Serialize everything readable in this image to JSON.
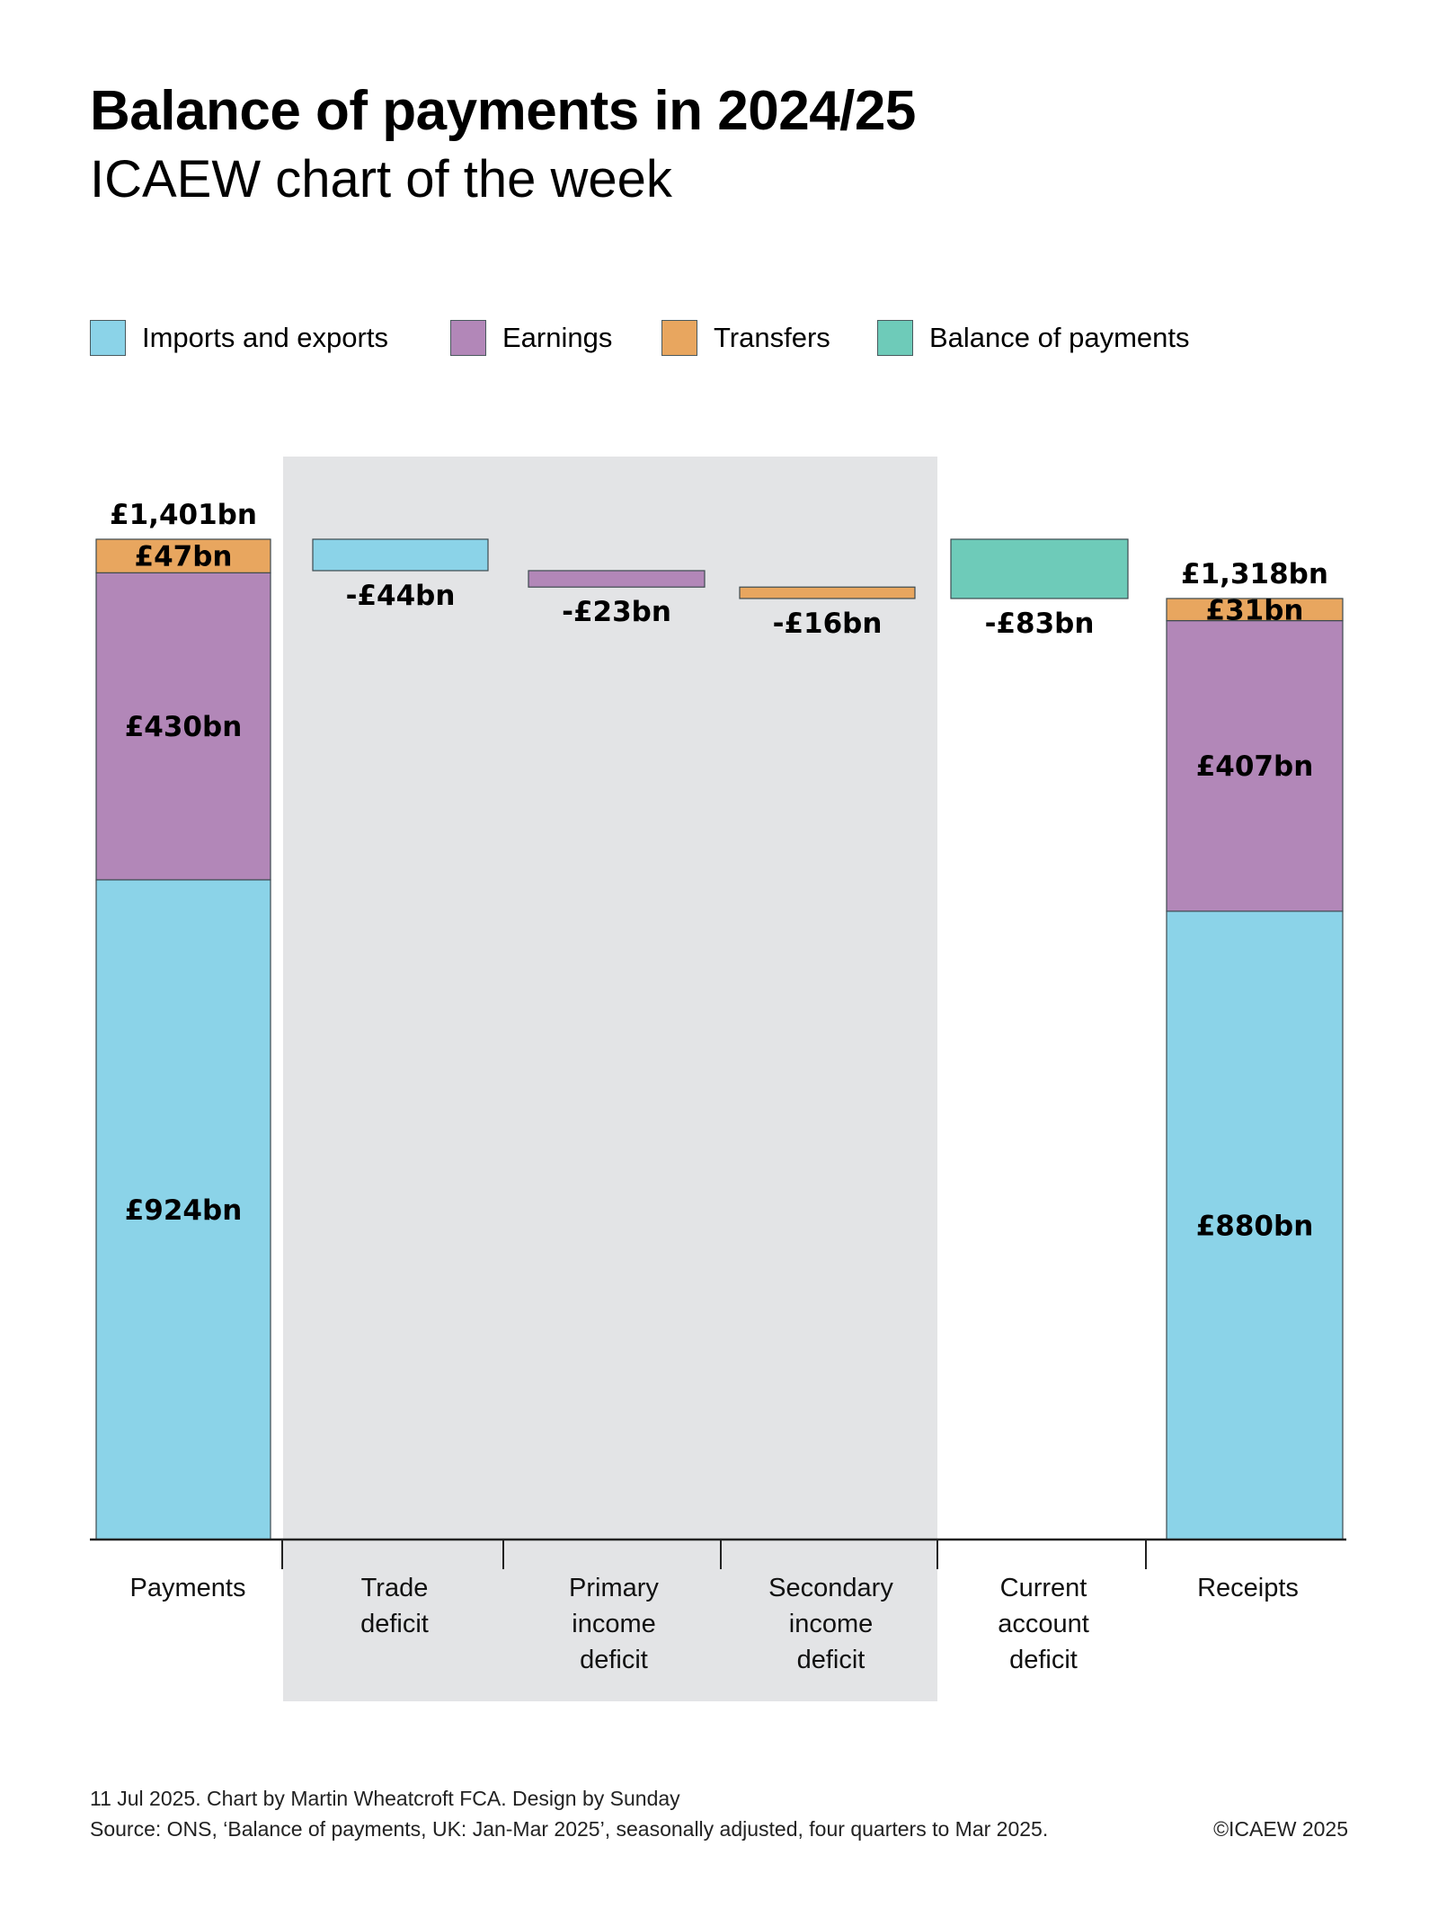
{
  "header": {
    "title": "Balance of payments in 2024/25",
    "subtitle": "ICAEW chart of the week"
  },
  "legend": [
    {
      "label": "Imports and exports",
      "color": "#8bd3e8"
    },
    {
      "label": "Earnings",
      "color": "#b287b8"
    },
    {
      "label": "Transfers",
      "color": "#e8a65f"
    },
    {
      "label": "Balance of payments",
      "color": "#6ecbb9"
    }
  ],
  "colors": {
    "imports": "#8bd3e8",
    "earnings": "#b287b8",
    "transfers": "#e8a65f",
    "balance": "#6ecbb9",
    "shade": "#e3e4e6",
    "axis": "#222222"
  },
  "chart_data": {
    "type": "bar",
    "subtype": "waterfall",
    "title": "Balance of payments in 2024/25",
    "subtitle": "ICAEW chart of the week",
    "xlabel": "",
    "ylabel": "",
    "units": "£bn",
    "ylim": [
      0,
      1401
    ],
    "grid": false,
    "legend_position": "top",
    "categories": [
      [
        "Payments"
      ],
      [
        "Trade",
        "deficit"
      ],
      [
        "Primary",
        "income",
        "deficit"
      ],
      [
        "Secondary",
        "income",
        "deficit"
      ],
      [
        "Current",
        "account",
        "deficit"
      ],
      [
        "Receipts"
      ]
    ],
    "shaded_categories": [
      1,
      2,
      3
    ],
    "stacks": [
      {
        "category_index": 0,
        "total": 1401,
        "total_label": "£1,401bn",
        "segments": [
          {
            "series": "Imports and exports",
            "value": 924,
            "label": "£924bn"
          },
          {
            "series": "Earnings",
            "value": 430,
            "label": "£430bn"
          },
          {
            "series": "Transfers",
            "value": 47,
            "label": "£47bn"
          }
        ]
      },
      {
        "category_index": 5,
        "total": 1318,
        "total_label": "£1,318bn",
        "segments": [
          {
            "series": "Imports and exports",
            "value": 880,
            "label": "£880bn"
          },
          {
            "series": "Earnings",
            "value": 407,
            "label": "£407bn"
          },
          {
            "series": "Transfers",
            "value": 31,
            "label": "£31bn"
          }
        ]
      }
    ],
    "steps": [
      {
        "category_index": 1,
        "series": "Imports and exports",
        "value": -44,
        "start": 1401,
        "label": "-£44bn"
      },
      {
        "category_index": 2,
        "series": "Earnings",
        "value": -23,
        "start": 1357,
        "label": "-£23bn"
      },
      {
        "category_index": 3,
        "series": "Transfers",
        "value": -16,
        "start": 1334,
        "label": "-£16bn"
      },
      {
        "category_index": 4,
        "series": "Balance of payments",
        "value": -83,
        "start": 1401,
        "label": "-£83bn"
      }
    ]
  },
  "footer": {
    "credit": "11 Jul 2025.  Chart by Martin Wheatcroft FCA.  Design by Sunday",
    "source": "Source: ONS, ‘Balance of payments, UK: Jan-Mar 2025’, seasonally adjusted, four quarters to Mar 2025.",
    "copyright": "©ICAEW 2025"
  }
}
